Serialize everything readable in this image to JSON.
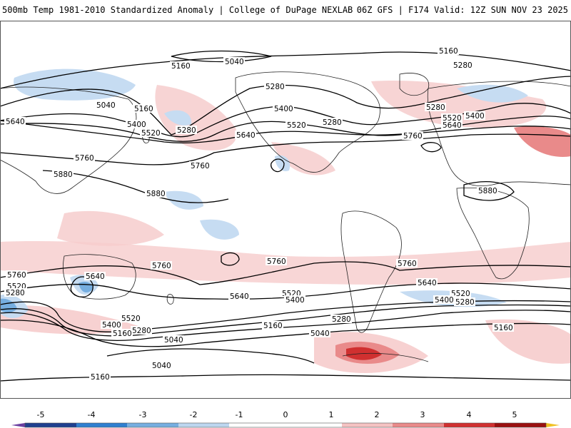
{
  "header": {
    "title_left": "500mb Temp 1981-2010 Standardized Anomaly | College of DuPage NEXLAB",
    "title_right": "06Z GFS | F174 Valid: 12Z SUN NOV 23 2025"
  },
  "colorbar": {
    "ticks": [
      "-5",
      "-4",
      "-3",
      "-2",
      "-1",
      "0",
      "1",
      "2",
      "3",
      "4",
      "5"
    ],
    "colors": [
      "#6b3fa0",
      "#1f3f8f",
      "#2f7fd0",
      "#76aee0",
      "#bcd6ef",
      "#ffffff",
      "#ffffff",
      "#f5c2c2",
      "#e98a8a",
      "#d03030",
      "#9a1010",
      "#f0c020"
    ]
  },
  "contour_labels": {
    "l5160": "5160",
    "l5040": "5040",
    "l5280": "5280",
    "l5400": "5400",
    "l5520": "5520",
    "l5640": "5640",
    "l5760": "5760",
    "l5880": "5880"
  },
  "map": {
    "land_outline": "#222222",
    "contour_color": "#000000",
    "warm_shade": "#f6cccc",
    "cool_shade": "#c6dcf2"
  }
}
